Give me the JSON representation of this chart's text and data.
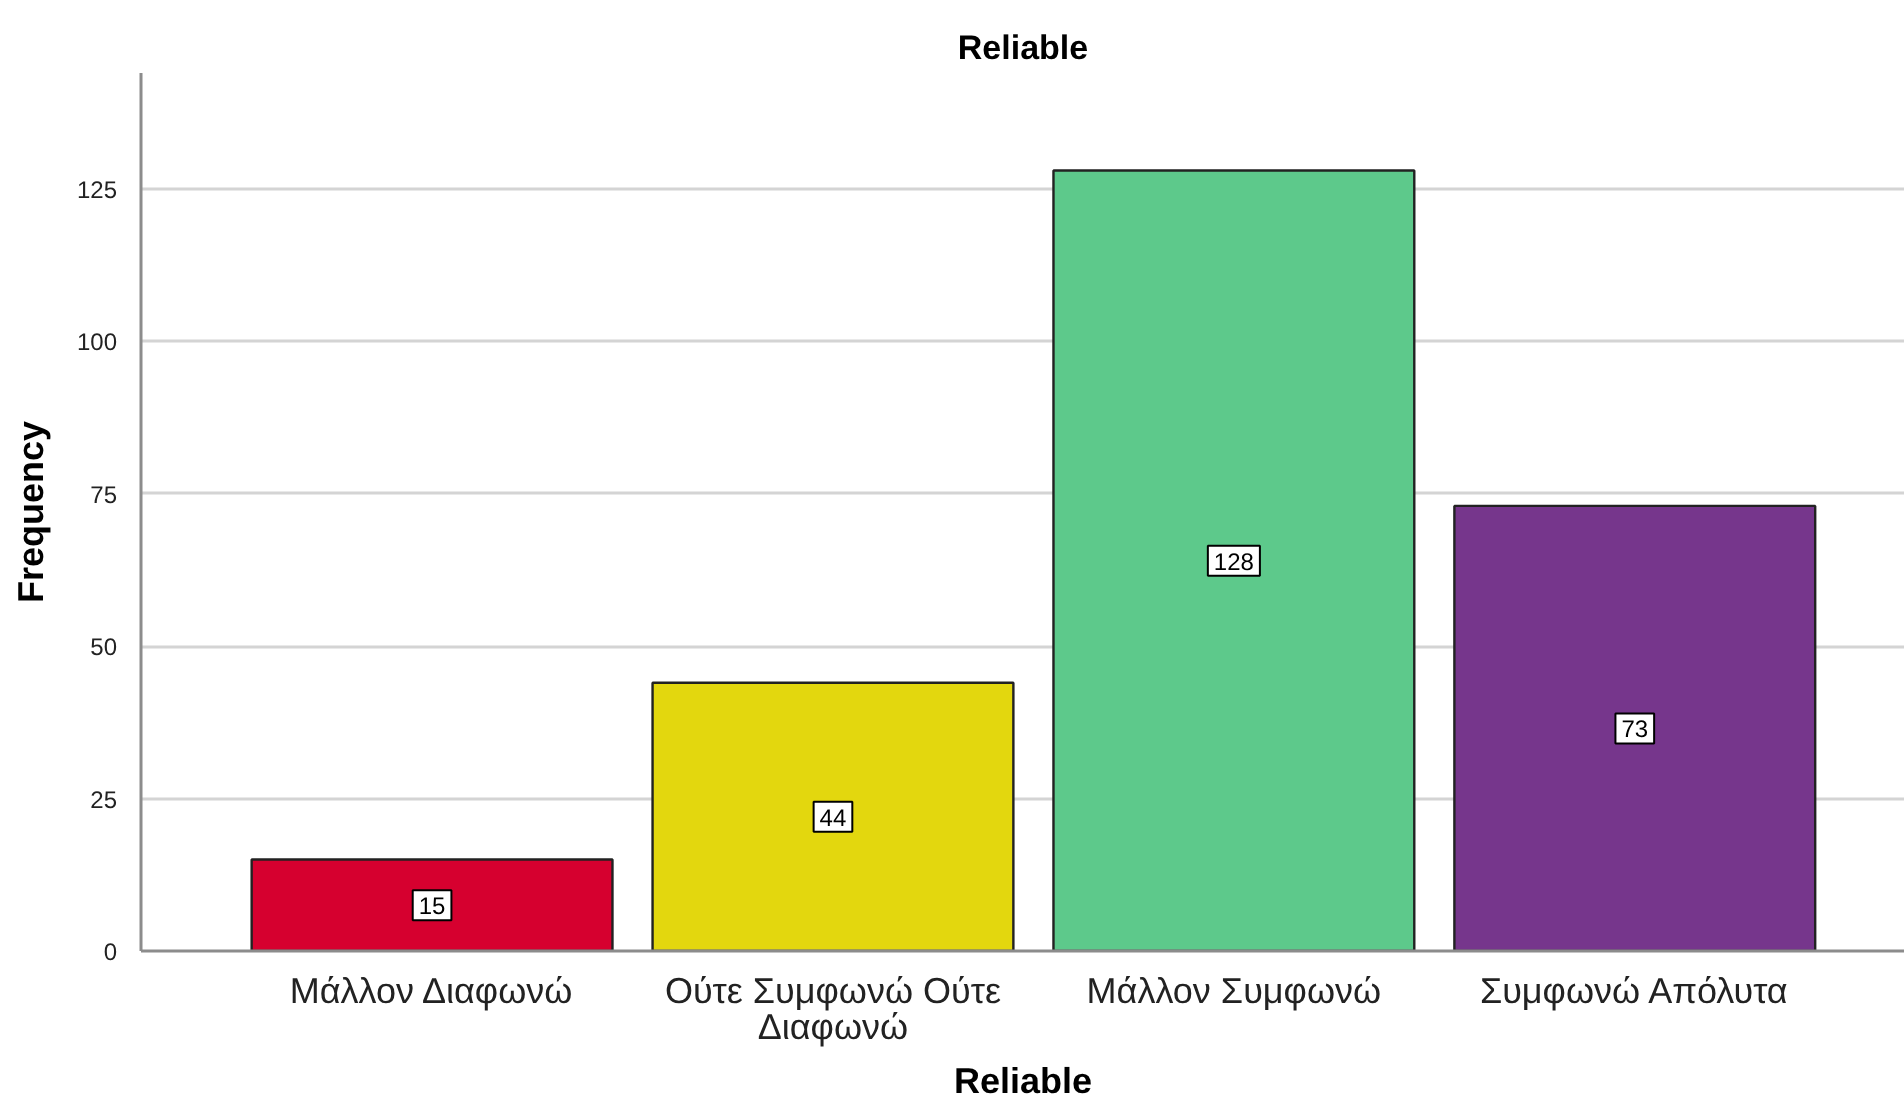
{
  "chart_data": {
    "type": "bar",
    "title": "Reliable",
    "xlabel": "Reliable",
    "ylabel": "Frequency",
    "categories": [
      "Μάλλον Διαφωνώ",
      "Ούτε Συμφωνώ Ούτε Διαφωνώ",
      "Μάλλον Συμφωνώ",
      "Συμφωνώ Απόλυτα"
    ],
    "values": [
      15,
      44,
      128,
      73
    ],
    "colors": [
      "#d6002f",
      "#e3d70e",
      "#5dc98b",
      "#76368c"
    ],
    "ylim": [
      0,
      144
    ],
    "yticks": [
      0,
      25,
      50,
      75,
      100,
      125
    ],
    "grid": "y",
    "data_labels": true
  }
}
